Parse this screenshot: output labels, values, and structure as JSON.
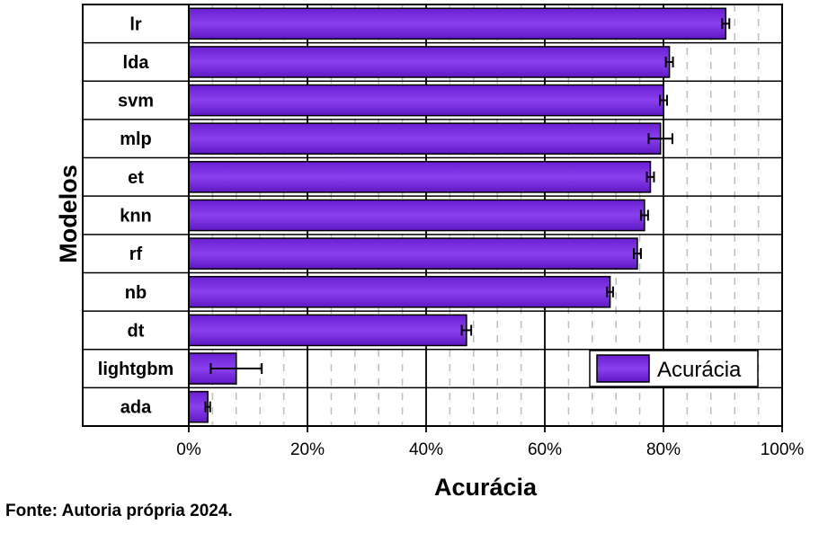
{
  "chart_data": {
    "type": "bar",
    "orientation": "horizontal",
    "categories": [
      "lr",
      "lda",
      "svm",
      "mlp",
      "et",
      "knn",
      "rf",
      "nb",
      "dt",
      "lightgbm",
      "ada"
    ],
    "series": [
      {
        "name": "Acurácia",
        "values": [
          90.5,
          81.0,
          80.0,
          79.5,
          77.8,
          76.8,
          75.6,
          71.0,
          46.8,
          8.0,
          3.2
        ],
        "errors": [
          0.6,
          0.6,
          0.6,
          2.0,
          0.6,
          0.6,
          0.6,
          0.5,
          0.8,
          4.3,
          0.4
        ],
        "color": "#7a2ee0"
      }
    ],
    "xlabel": "Acurácia",
    "ylabel": "Modelos",
    "xlim": [
      0,
      100
    ],
    "xticks": [
      0,
      20,
      40,
      60,
      80,
      100
    ],
    "xtick_labels": [
      "0%",
      "20%",
      "40%",
      "60%",
      "80%",
      "100%"
    ],
    "grid": {
      "major": true,
      "minor_dashed": true
    },
    "legend_position": "bottom-right"
  },
  "source_note": "Fonte: Autoria própria 2024."
}
